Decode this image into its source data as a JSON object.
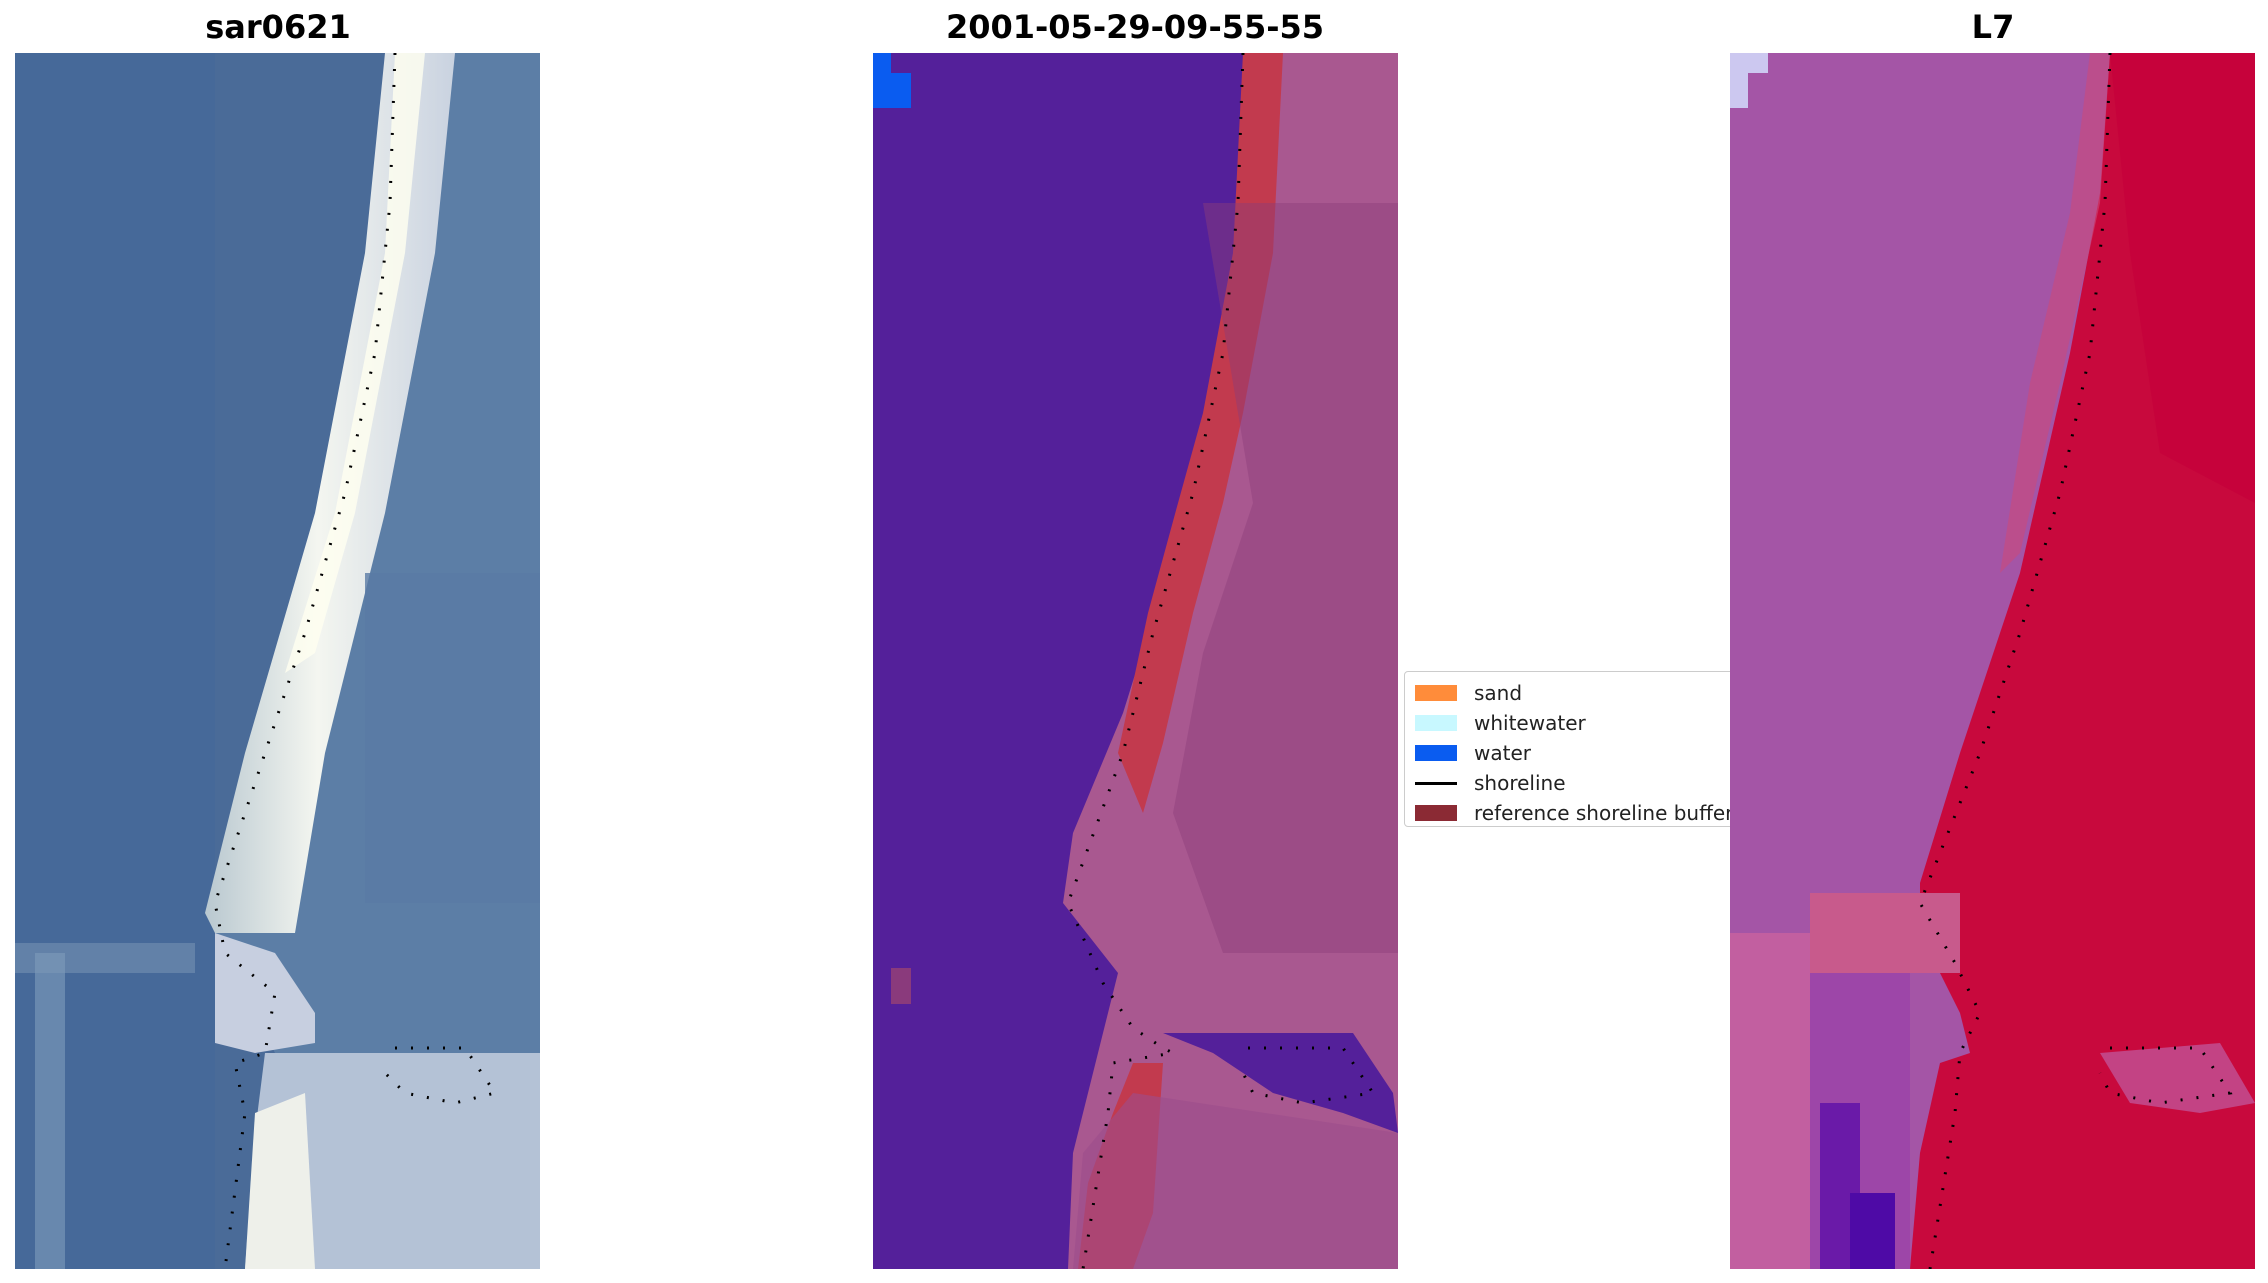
{
  "panels": [
    {
      "id": "rgb",
      "title": "sar0621"
    },
    {
      "id": "classified",
      "title": "2001-05-29-09-55-55"
    },
    {
      "id": "index",
      "title": "L7"
    }
  ],
  "legend": {
    "items": [
      {
        "label": "sand",
        "type": "patch",
        "color": "#ff8c3a"
      },
      {
        "label": "whitewater",
        "type": "patch",
        "color": "#c8f8ff"
      },
      {
        "label": "water",
        "type": "patch",
        "color": "#0a5cf0"
      },
      {
        "label": "shoreline",
        "type": "line",
        "color": "#000000"
      },
      {
        "label": "reference shoreline buffer",
        "type": "patch",
        "color": "#8b2a34"
      }
    ]
  },
  "colors": {
    "ocean_rgb": "#4a6e9c",
    "beach_rgb": "#e8eef2",
    "land_rgb": "#6f8fae",
    "water_class": "#54209a",
    "buffer": "#c23a4e",
    "land_class": "#a85a90",
    "water_index": "#a455a6",
    "land_index": "#c8093d"
  }
}
